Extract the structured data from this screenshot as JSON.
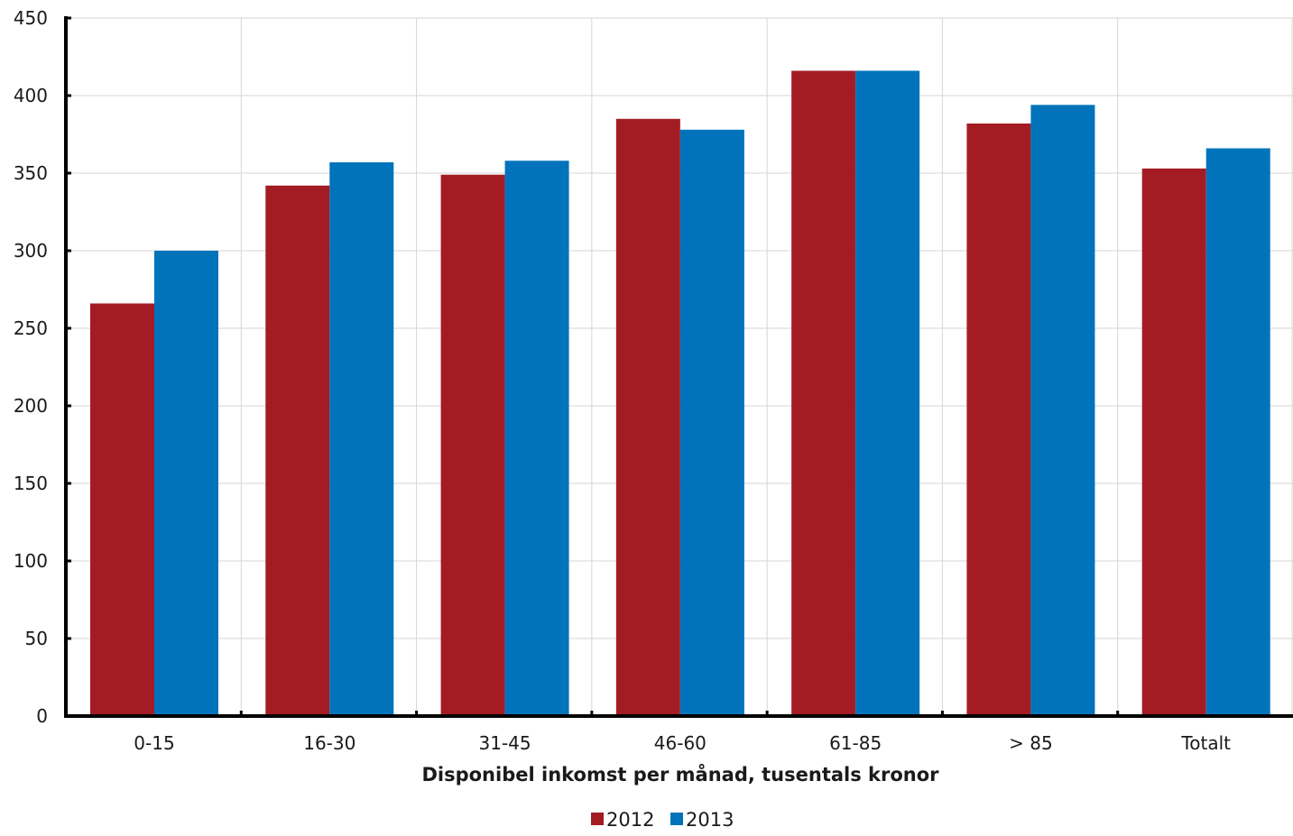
{
  "chart_data": {
    "type": "bar",
    "categories": [
      "0-15",
      "16-30",
      "31-45",
      "46-60",
      "61-85",
      "> 85",
      "Totalt"
    ],
    "series": [
      {
        "name": "2012",
        "color": "#a31c24",
        "values": [
          266,
          342,
          349,
          385,
          416,
          382,
          353
        ]
      },
      {
        "name": "2013",
        "color": "#0073bb",
        "values": [
          300,
          357,
          358,
          378,
          416,
          394,
          366
        ]
      }
    ],
    "title": "",
    "xlabel": "Disponibel inkomst per månad, tusentals kronor",
    "ylabel": "",
    "ylim": [
      0,
      450
    ],
    "yticks": [
      0,
      50,
      100,
      150,
      200,
      250,
      300,
      350,
      400,
      450
    ],
    "grid": true,
    "legend": "bottom"
  }
}
